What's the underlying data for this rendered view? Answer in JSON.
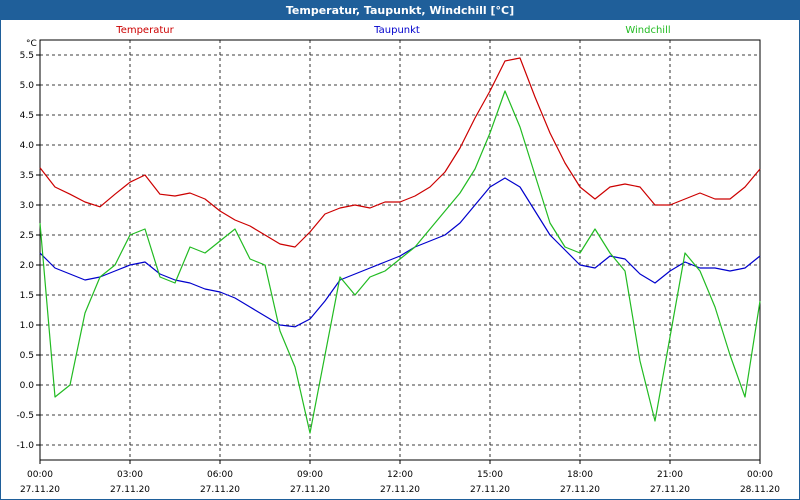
{
  "window": {
    "title": "Temperatur, Taupunkt, Windchill [°C]"
  },
  "chart_data": {
    "type": "line",
    "unit": "°C",
    "ylim": [
      -1.25,
      5.75
    ],
    "yticks": [
      "5.5",
      "5.0",
      "4.5",
      "4.0",
      "3.5",
      "3.0",
      "2.5",
      "2.0",
      "1.5",
      "1.0",
      "0.5",
      "0.0",
      "-0.5",
      "-1.0"
    ],
    "xticks": [
      {
        "time": "00:00",
        "date": "27.11.20"
      },
      {
        "time": "03:00",
        "date": "27.11.20"
      },
      {
        "time": "06:00",
        "date": "27.11.20"
      },
      {
        "time": "09:00",
        "date": "27.11.20"
      },
      {
        "time": "12:00",
        "date": "27.11.20"
      },
      {
        "time": "15:00",
        "date": "27.11.20"
      },
      {
        "time": "18:00",
        "date": "27.11.20"
      },
      {
        "time": "21:00",
        "date": "27.11.20"
      },
      {
        "time": "00:00",
        "date": "28.11.20"
      }
    ],
    "x_hours": [
      0,
      0.5,
      1,
      1.5,
      2,
      2.5,
      3,
      3.5,
      4,
      4.5,
      5,
      5.5,
      6,
      6.5,
      7,
      7.5,
      8,
      8.5,
      9,
      9.5,
      10,
      10.5,
      11,
      11.5,
      12,
      12.5,
      13,
      13.5,
      14,
      14.5,
      15,
      15.5,
      16,
      16.5,
      17,
      17.5,
      18,
      18.5,
      19,
      19.5,
      20,
      20.5,
      21,
      21.5,
      22,
      22.5,
      23,
      23.5,
      24
    ],
    "grid": true,
    "legend": "top",
    "series": [
      {
        "name": "Temperatur",
        "color": "#cc0000",
        "values": [
          3.62,
          3.3,
          3.18,
          3.05,
          2.97,
          3.18,
          3.38,
          3.5,
          3.18,
          3.15,
          3.2,
          3.1,
          2.9,
          2.75,
          2.65,
          2.5,
          2.35,
          2.3,
          2.55,
          2.85,
          2.95,
          3.0,
          2.95,
          3.05,
          3.05,
          3.15,
          3.3,
          3.55,
          3.95,
          4.45,
          4.9,
          5.4,
          5.45,
          4.8,
          4.2,
          3.7,
          3.3,
          3.1,
          3.3,
          3.35,
          3.3,
          3.0,
          3.0,
          3.1,
          3.2,
          3.1,
          3.1,
          3.3,
          3.6
        ]
      },
      {
        "name": "Taupunkt",
        "color": "#0000cc",
        "values": [
          2.2,
          1.95,
          1.85,
          1.75,
          1.8,
          1.9,
          2.0,
          2.05,
          1.85,
          1.75,
          1.7,
          1.6,
          1.55,
          1.45,
          1.3,
          1.15,
          1.0,
          0.97,
          1.1,
          1.4,
          1.75,
          1.85,
          1.95,
          2.05,
          2.15,
          2.3,
          2.4,
          2.5,
          2.7,
          3.0,
          3.3,
          3.45,
          3.3,
          2.9,
          2.5,
          2.25,
          2.0,
          1.95,
          2.15,
          2.1,
          1.85,
          1.7,
          1.9,
          2.05,
          1.95,
          1.95,
          1.9,
          1.95,
          2.15
        ]
      },
      {
        "name": "Windchill",
        "color": "#22bb22",
        "values": [
          2.7,
          -0.2,
          0.0,
          1.2,
          1.8,
          2.0,
          2.5,
          2.6,
          1.8,
          1.7,
          2.3,
          2.2,
          2.4,
          2.6,
          2.1,
          2.0,
          0.9,
          0.3,
          -0.8,
          0.5,
          1.8,
          1.5,
          1.8,
          1.9,
          2.1,
          2.3,
          2.6,
          2.9,
          3.2,
          3.6,
          4.2,
          4.9,
          4.3,
          3.5,
          2.7,
          2.3,
          2.2,
          2.6,
          2.2,
          1.9,
          0.4,
          -0.6,
          0.8,
          2.2,
          1.9,
          1.3,
          0.5,
          -0.2,
          1.4
        ]
      }
    ]
  }
}
